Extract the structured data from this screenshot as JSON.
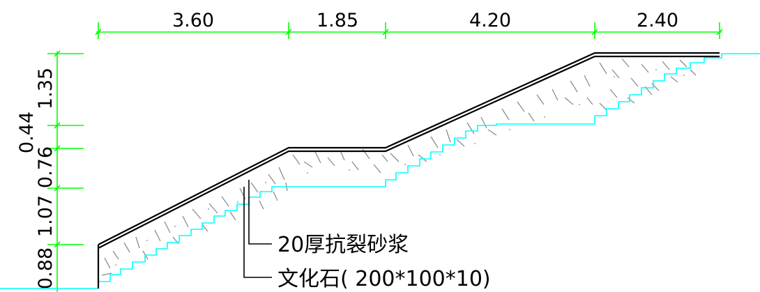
{
  "dimensions_top": [
    "3.60",
    "1.85",
    "4.20",
    "2.40"
  ],
  "dimensions_left": [
    "1.35",
    "0.44",
    "0.76",
    "1.07",
    "0.88"
  ],
  "labels": {
    "mortar": "20厚抗裂砂浆",
    "stone": "文化石( 200*100*10)"
  },
  "colors": {
    "dimension": "#00ff00",
    "ground": "#00ffff",
    "surface": "#000000",
    "hatch": "#8c8c8c",
    "leader": "#000000"
  }
}
